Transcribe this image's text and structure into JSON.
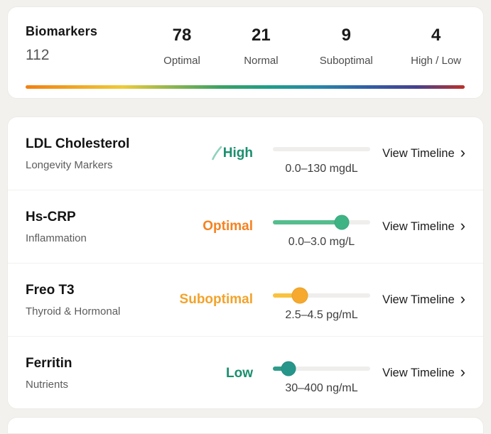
{
  "header": {
    "title": "Biomarkers",
    "total": "112",
    "stats": [
      {
        "value": "78",
        "label": "Optimal"
      },
      {
        "value": "21",
        "label": "Normal"
      },
      {
        "value": "9",
        "label": "Suboptimal"
      },
      {
        "value": "4",
        "label": "High / Low"
      }
    ],
    "gradient_colors": [
      "#f28011",
      "#f0a622",
      "#eecb38",
      "#8db64e",
      "#3aa264",
      "#1f9d8a",
      "#2887a7",
      "#315fa6",
      "#45418f",
      "#bd3028"
    ]
  },
  "chevron": "›",
  "rows": [
    {
      "name": "LDL Cholesterol",
      "category": "Longevity Markers",
      "status": "High",
      "status_color": "#1a8f6e",
      "trend_icon": true,
      "range": "0.0–130 mgdL",
      "slider": {
        "fill_pct": 0,
        "show_thumb": false,
        "fill_color": "",
        "thumb_color": "",
        "thumb_size": 0
      },
      "action": "View Timeline"
    },
    {
      "name": "Hs-CRP",
      "category": "Inflammation",
      "status": "Optimal",
      "status_color": "#f58220",
      "trend_icon": false,
      "range": "0.0–3.0 mg/L",
      "slider": {
        "fill_pct": 71,
        "show_thumb": true,
        "fill_color": "#55bd8e",
        "thumb_color": "#3eb384",
        "thumb_size": 21
      },
      "action": "View Timeline"
    },
    {
      "name": "Freo T3",
      "category": "Thyroid & Hormonal",
      "status": "Suboptimal",
      "status_color": "#f2a32b",
      "trend_icon": false,
      "range": "2.5–4.5 pg/mL",
      "slider": {
        "fill_pct": 28,
        "show_thumb": true,
        "fill_color": "#f9c33f",
        "thumb_color": "#f6a92d",
        "thumb_size": 23
      },
      "action": "View Timeline"
    },
    {
      "name": "Ferritin",
      "category": "Nutrients",
      "status": "Low",
      "status_color": "#1a8f6e",
      "trend_icon": false,
      "range": "30–400 ng/mL",
      "slider": {
        "fill_pct": 16,
        "show_thumb": true,
        "fill_color": "#2f9c8b",
        "thumb_color": "#27968a",
        "thumb_size": 21
      },
      "action": "View Timeline"
    }
  ]
}
